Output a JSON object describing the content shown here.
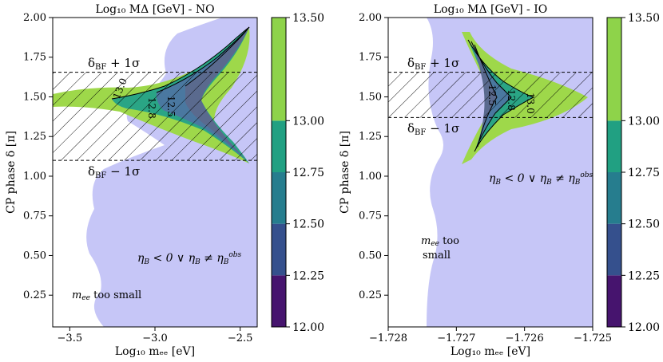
{
  "chart_data": [
    {
      "type": "contour",
      "title": "Log₁₀ MΔ [GeV] - NO",
      "xlabel": "Log₁₀ mₑₑ [eV]",
      "ylabel": "CP phase δ [π]",
      "xlim": [
        -3.6,
        -2.4
      ],
      "ylim": [
        0.05,
        2.0
      ],
      "xticks": [
        -3.5,
        -3.0,
        -2.5
      ],
      "xtick_labels": [
        "−3.5",
        "−3.0",
        "−2.5"
      ],
      "yticks": [
        0.25,
        0.5,
        0.75,
        1.0,
        1.25,
        1.5,
        1.75,
        2.0
      ],
      "ytick_labels": [
        "0.25",
        "0.50",
        "0.75",
        "1.00",
        "1.25",
        "1.50",
        "1.75",
        "2.00"
      ],
      "sigma_band": {
        "low": 1.1,
        "high": 1.655,
        "upper_label": "δBF + 1σ",
        "lower_label": "δBF − 1σ"
      },
      "contour_labels": [
        "13.0",
        "12.8",
        "12.5"
      ],
      "region_labels": {
        "excluded": "ηB < 0 ∨ ηB ≠ ηB obs",
        "small": "mee too small"
      },
      "colorbar": {
        "levels": [
          12.0,
          12.25,
          12.5,
          12.75,
          13.0,
          13.5
        ],
        "tick_labels": [
          "12.00",
          "12.25",
          "12.50",
          "12.75",
          "13.00",
          "13.50"
        ]
      }
    },
    {
      "type": "contour",
      "title": "Log₁₀ MΔ [GeV] - IO",
      "xlabel": "Log₁₀ mₑₑ [eV]",
      "ylabel": "CP phase δ [π]",
      "xlim": [
        -1.728,
        -1.725
      ],
      "ylim": [
        0.05,
        2.0
      ],
      "xticks": [
        -1.728,
        -1.727,
        -1.726,
        -1.725
      ],
      "xtick_labels": [
        "−1.728",
        "−1.727",
        "−1.726",
        "−1.725"
      ],
      "yticks": [
        0.25,
        0.5,
        0.75,
        1.0,
        1.25,
        1.5,
        1.75,
        2.0
      ],
      "ytick_labels": [
        "0.25",
        "0.50",
        "0.75",
        "1.00",
        "1.25",
        "1.50",
        "1.75",
        "2.00"
      ],
      "sigma_band": {
        "low": 1.37,
        "high": 1.655,
        "upper_label": "δBF + 1σ",
        "lower_label": "δBF − 1σ"
      },
      "contour_labels": [
        "12.5",
        "12.8",
        "13.0"
      ],
      "region_labels": {
        "excluded": "ηB < 0 ∨ ηB ≠ ηB obs",
        "small_line1": "mee too",
        "small_line2": "small"
      },
      "colorbar": {
        "levels": [
          12.0,
          12.25,
          12.5,
          12.75,
          13.0,
          13.5
        ],
        "tick_labels": [
          "12.00",
          "12.25",
          "12.50",
          "12.75",
          "13.00",
          "13.50"
        ]
      }
    }
  ],
  "colors": {
    "excluded": "#c6c6f7",
    "cb_12_00": "#46146e",
    "cb_12_25": "#35508d",
    "cb_12_50": "#267d8e",
    "cb_12_75": "#21a082",
    "cb_13_00": "#8ed34a",
    "fill_green": "#9ed84a",
    "fill_teal": "#2aa585",
    "fill_blue": "#4a78a0",
    "fill_slate": "#5a6a8e"
  }
}
